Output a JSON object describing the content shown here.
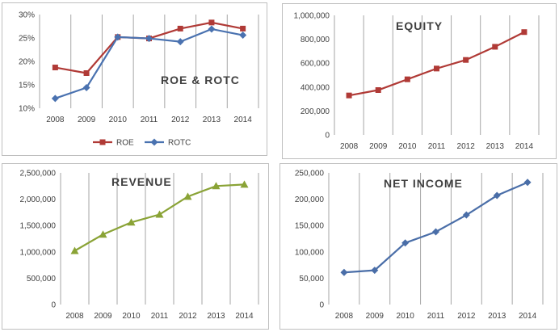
{
  "chart_data": [
    {
      "id": "roe-rotc",
      "type": "line",
      "title": "ROE & ROTC",
      "categories": [
        "2008",
        "2009",
        "2010",
        "2011",
        "2012",
        "2013",
        "2014"
      ],
      "series": [
        {
          "name": "ROE",
          "color": "#b03a36",
          "marker": "square",
          "values": [
            18.7,
            17.5,
            25.2,
            24.9,
            27.0,
            28.3,
            27.0
          ]
        },
        {
          "name": "ROTC",
          "color": "#4a72b0",
          "marker": "diamond",
          "values": [
            12.1,
            14.4,
            25.2,
            24.9,
            24.2,
            26.9,
            25.6
          ]
        }
      ],
      "ylim": [
        10,
        30
      ],
      "yticks": [
        "10%",
        "15%",
        "20%",
        "25%",
        "30%"
      ],
      "xlabel": "",
      "ylabel": "",
      "legend": "bottom"
    },
    {
      "id": "equity",
      "type": "line",
      "title": "EQUITY",
      "categories": [
        "2008",
        "2009",
        "2010",
        "2011",
        "2012",
        "2013",
        "2014"
      ],
      "series": [
        {
          "name": "Equity",
          "color": "#b03a36",
          "marker": "square",
          "values": [
            330000,
            375000,
            465000,
            555000,
            627000,
            737000,
            860000
          ]
        }
      ],
      "ylim": [
        0,
        1000000
      ],
      "yticks": [
        "0",
        "200,000",
        "400,000",
        "600,000",
        "800,000",
        "1,000,000"
      ],
      "xlabel": "",
      "ylabel": ""
    },
    {
      "id": "revenue",
      "type": "line",
      "title": "REVENUE",
      "categories": [
        "2008",
        "2009",
        "2010",
        "2011",
        "2012",
        "2013",
        "2014"
      ],
      "series": [
        {
          "name": "Revenue",
          "color": "#8aa336",
          "marker": "triangle",
          "values": [
            1020000,
            1330000,
            1560000,
            1710000,
            2050000,
            2250000,
            2280000
          ]
        }
      ],
      "ylim": [
        0,
        2500000
      ],
      "yticks": [
        "0",
        "500,000",
        "1,000,000",
        "1,500,000",
        "2,000,000",
        "2,500,000"
      ],
      "xlabel": "",
      "ylabel": ""
    },
    {
      "id": "net-income",
      "type": "line",
      "title": "NET INCOME",
      "categories": [
        "2008",
        "2009",
        "2010",
        "2011",
        "2012",
        "2013",
        "2014"
      ],
      "series": [
        {
          "name": "Net Income",
          "color": "#4a6ea8",
          "marker": "diamond",
          "values": [
            61000,
            65000,
            117000,
            138000,
            170000,
            207000,
            232000
          ]
        }
      ],
      "ylim": [
        0,
        250000
      ],
      "yticks": [
        "0",
        "50,000",
        "100,000",
        "150,000",
        "200,000",
        "250,000"
      ],
      "xlabel": "",
      "ylabel": ""
    }
  ]
}
